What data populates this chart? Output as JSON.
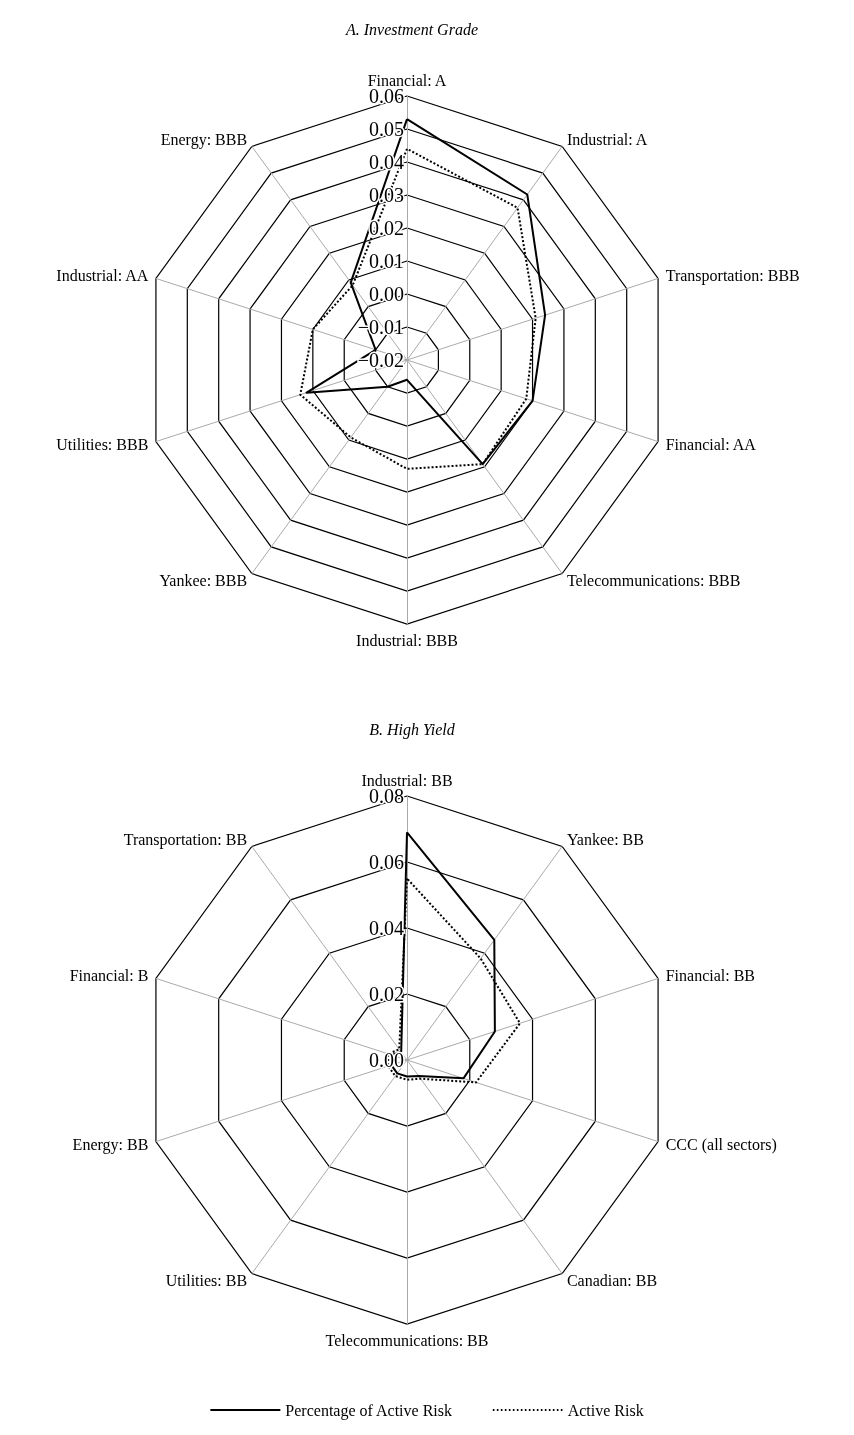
{
  "chart_data": [
    {
      "type": "radar",
      "title": "A. Investment Grade",
      "categories": [
        "Financial: A",
        "Industrial: A",
        "Transportation: BBB",
        "Financial: AA",
        "Telecommunications: BBB",
        "Industrial: BBB",
        "Yankee: BBB",
        "Utilities: BBB",
        "Industrial: AA",
        "Energy: BBB"
      ],
      "series": [
        {
          "color": "#000000",
          "line_style": "solid",
          "values": [
            0.053,
            0.042,
            0.024,
            0.02,
            0.019,
            -0.014,
            -0.01,
            0.012,
            -0.01,
            0.009
          ]
        },
        {
          "color": "#000000",
          "line_style": "dotted",
          "values": [
            0.044,
            0.037,
            0.021,
            0.018,
            0.019,
            0.013,
            0.009,
            0.014,
            0.01,
            0.008
          ]
        }
      ],
      "ylim": [
        -0.02,
        0.06
      ],
      "yticks": [
        {
          "value": -0.02,
          "label": "−0.02"
        },
        {
          "value": -0.01,
          "label": "−0.01"
        },
        {
          "value": 0,
          "label": "0.00"
        },
        0.01,
        0.02,
        0.03,
        0.04,
        0.05,
        0.06
      ],
      "marker": "none",
      "legend": false
    },
    {
      "type": "radar",
      "title": "B. High Yield",
      "categories": [
        "Industrial: BB",
        "Yankee: BB",
        "Financial: BB",
        "CCC (all sectors)",
        "Canadian: BB",
        "Telecommunications: BB",
        "Utilities: BB",
        "Energy: BB",
        "Financial: B",
        "Transportation: BB"
      ],
      "series": [
        {
          "name": "Percentage of Active Risk",
          "color": "#000000",
          "line_style": "solid",
          "values": [
            0.069,
            0.045,
            0.028,
            0.018,
            0.006,
            0.005,
            0.005,
            0.005,
            0.005,
            0.003
          ]
        },
        {
          "name": "Active Risk",
          "color": "#000000",
          "line_style": "dotted",
          "values": [
            0.055,
            0.038,
            0.036,
            0.022,
            0.007,
            0.006,
            0.006,
            0.006,
            0.006,
            0.004
          ]
        }
      ],
      "ylim": [
        0,
        0.08
      ],
      "yticks": [
        {
          "value": 0,
          "label": "0.00"
        },
        0.02,
        0.04,
        0.06,
        0.08
      ],
      "marker": "none",
      "legend": "bottom"
    }
  ]
}
